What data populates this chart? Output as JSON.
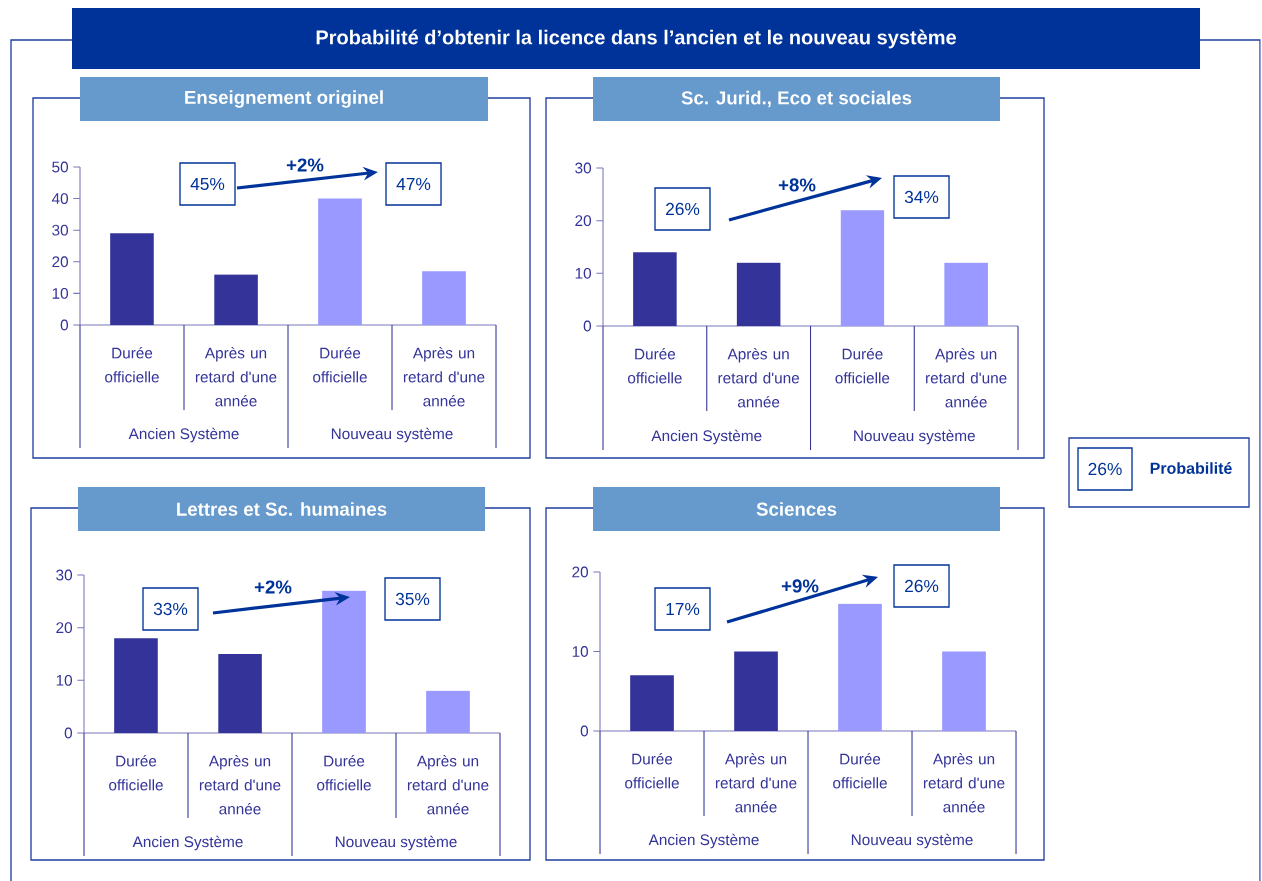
{
  "chart_data": [
    {
      "type": "other",
      "title": "Probabilité d’obtenir la licence dans l’ancien et le nouveau système",
      "annotations": [
        "26%",
        "Probabilité"
      ]
    },
    {
      "type": "bar",
      "title": "Enseignement originel",
      "categories": [
        "Durée officielle",
        "Après un retard d'une année",
        "Durée officielle",
        "Après un retard d'une année"
      ],
      "values": [
        29,
        16,
        40,
        17
      ],
      "colors": [
        "#333399",
        "#333399",
        "#9999ff",
        "#9999ff"
      ],
      "ylim": [
        0,
        50
      ],
      "yticks": [
        0,
        10,
        20,
        30,
        40,
        50
      ],
      "annotations": [
        "45%",
        "+2%",
        "47%",
        "Ancien Système",
        "Nouveau système"
      ]
    },
    {
      "type": "bar",
      "title": "Sc. Jurid., Eco et sociales",
      "categories": [
        "Durée officielle",
        "Après un retard d'une année",
        "Durée officielle",
        "Après un retard d'une année"
      ],
      "values": [
        14,
        12,
        22,
        12
      ],
      "colors": [
        "#333399",
        "#333399",
        "#9999ff",
        "#9999ff"
      ],
      "ylim": [
        0,
        30
      ],
      "yticks": [
        0,
        10,
        20,
        30
      ],
      "annotations": [
        "26%",
        "+8%",
        "34%",
        "Ancien Système",
        "Nouveau système"
      ]
    },
    {
      "type": "bar",
      "title": "Lettres et Sc. humaines",
      "categories": [
        "Durée officielle",
        "Après un retard d'une année",
        "Durée officielle",
        "Après un retard d'une année"
      ],
      "values": [
        18,
        15,
        27,
        8
      ],
      "colors": [
        "#333399",
        "#333399",
        "#9999ff",
        "#9999ff"
      ],
      "ylim": [
        0,
        30
      ],
      "yticks": [
        0,
        10,
        20,
        30
      ],
      "annotations": [
        "33%",
        "+2%",
        "35%",
        "Ancien Système",
        "Nouveau système"
      ]
    },
    {
      "type": "bar",
      "title": "Sciences",
      "categories": [
        "Durée officielle",
        "Après un retard d'une année",
        "Durée officielle",
        "Après un retard d'une année"
      ],
      "values": [
        7,
        10,
        16,
        10
      ],
      "colors": [
        "#333399",
        "#333399",
        "#9999ff",
        "#9999ff"
      ],
      "ylim": [
        0,
        20
      ],
      "yticks": [
        0,
        10,
        20
      ],
      "annotations": [
        "17%",
        "+9%",
        "26%",
        "Ancien Système",
        "Nouveau système"
      ]
    }
  ]
}
